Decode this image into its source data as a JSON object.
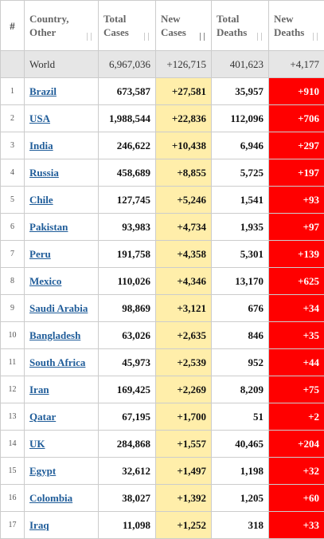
{
  "table": {
    "header": [
      "#",
      "Country,\nOther",
      "Total\nCases",
      "New\nCases",
      "Total\nDeaths",
      "New\nDeaths"
    ],
    "world": [
      "World",
      "6,967,036",
      "+126,715",
      "401,623",
      "+4,177"
    ],
    "rows": [
      [
        "1",
        "Brazil",
        "673,587",
        "+27,581",
        "35,957",
        "+910"
      ],
      [
        "2",
        "USA",
        "1,988,544",
        "+22,836",
        "112,096",
        "+706"
      ],
      [
        "3",
        "India",
        "246,622",
        "+10,438",
        "6,946",
        "+297"
      ],
      [
        "4",
        "Russia",
        "458,689",
        "+8,855",
        "5,725",
        "+197"
      ],
      [
        "5",
        "Chile",
        "127,745",
        "+5,246",
        "1,541",
        "+93"
      ],
      [
        "6",
        "Pakistan",
        "93,983",
        "+4,734",
        "1,935",
        "+97"
      ],
      [
        "7",
        "Peru",
        "191,758",
        "+4,358",
        "5,301",
        "+139"
      ],
      [
        "8",
        "Mexico",
        "110,026",
        "+4,346",
        "13,170",
        "+625"
      ],
      [
        "9",
        "Saudi Arabia",
        "98,869",
        "+3,121",
        "676",
        "+34"
      ],
      [
        "10",
        "Bangladesh",
        "63,026",
        "+2,635",
        "846",
        "+35"
      ],
      [
        "11",
        "South Africa",
        "45,973",
        "+2,539",
        "952",
        "+44"
      ],
      [
        "12",
        "Iran",
        "169,425",
        "+2,269",
        "8,209",
        "+75"
      ],
      [
        "13",
        "Qatar",
        "67,195",
        "+1,700",
        "51",
        "+2"
      ],
      [
        "14",
        "UK",
        "284,868",
        "+1,557",
        "40,465",
        "+204"
      ],
      [
        "15",
        "Egypt",
        "32,612",
        "+1,497",
        "1,198",
        "+32"
      ],
      [
        "16",
        "Colombia",
        "38,027",
        "+1,392",
        "1,205",
        "+60"
      ],
      [
        "17",
        "Iraq",
        "11,098",
        "+1,252",
        "318",
        "+33"
      ]
    ]
  }
}
